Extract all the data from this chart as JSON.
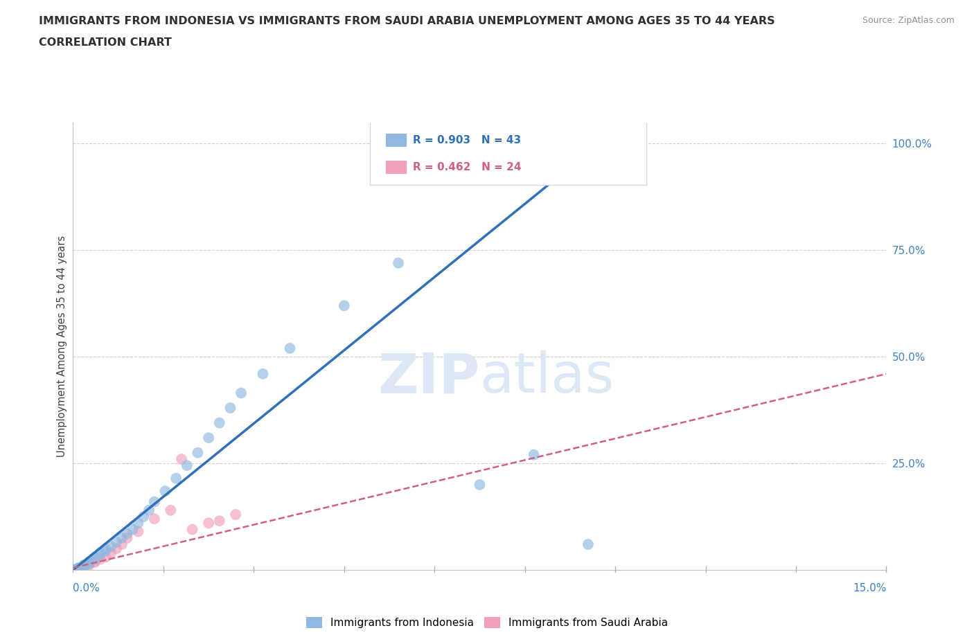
{
  "title_line1": "IMMIGRANTS FROM INDONESIA VS IMMIGRANTS FROM SAUDI ARABIA UNEMPLOYMENT AMONG AGES 35 TO 44 YEARS",
  "title_line2": "CORRELATION CHART",
  "source_text": "Source: ZipAtlas.com",
  "ylabel_label": "Unemployment Among Ages 35 to 44 years",
  "legend_entries": [
    {
      "label": "Immigrants from Indonesia",
      "R": "0.903",
      "N": "43",
      "color": "#a8c8e8"
    },
    {
      "label": "Immigrants from Saudi Arabia",
      "R": "0.462",
      "N": "24",
      "color": "#f0a8b8"
    }
  ],
  "indonesia_scatter_x": [
    0.0,
    0.0,
    0.001,
    0.001,
    0.001,
    0.001,
    0.002,
    0.002,
    0.002,
    0.002,
    0.003,
    0.003,
    0.003,
    0.004,
    0.004,
    0.005,
    0.005,
    0.006,
    0.006,
    0.007,
    0.008,
    0.009,
    0.01,
    0.011,
    0.012,
    0.013,
    0.014,
    0.015,
    0.017,
    0.019,
    0.021,
    0.023,
    0.025,
    0.027,
    0.029,
    0.031,
    0.035,
    0.04,
    0.05,
    0.06,
    0.075,
    0.085,
    0.095
  ],
  "indonesia_scatter_y": [
    0.0,
    0.001,
    0.002,
    0.003,
    0.004,
    0.005,
    0.006,
    0.008,
    0.01,
    0.012,
    0.015,
    0.018,
    0.02,
    0.025,
    0.03,
    0.035,
    0.04,
    0.045,
    0.05,
    0.055,
    0.065,
    0.075,
    0.085,
    0.095,
    0.11,
    0.125,
    0.14,
    0.16,
    0.185,
    0.215,
    0.245,
    0.275,
    0.31,
    0.345,
    0.38,
    0.415,
    0.46,
    0.52,
    0.62,
    0.72,
    0.2,
    0.27,
    0.06
  ],
  "saudi_scatter_x": [
    0.0,
    0.001,
    0.001,
    0.002,
    0.002,
    0.002,
    0.003,
    0.003,
    0.004,
    0.004,
    0.005,
    0.006,
    0.007,
    0.008,
    0.009,
    0.01,
    0.012,
    0.015,
    0.018,
    0.02,
    0.022,
    0.025,
    0.027,
    0.03
  ],
  "saudi_scatter_y": [
    0.0,
    0.002,
    0.004,
    0.006,
    0.008,
    0.01,
    0.012,
    0.015,
    0.018,
    0.02,
    0.025,
    0.03,
    0.04,
    0.05,
    0.06,
    0.075,
    0.09,
    0.12,
    0.14,
    0.26,
    0.095,
    0.11,
    0.115,
    0.13
  ],
  "indonesia_line_x": [
    0.0,
    0.098
  ],
  "indonesia_line_y": [
    0.0,
    1.01
  ],
  "saudi_line_x": [
    0.0,
    0.15
  ],
  "saudi_line_y": [
    0.005,
    0.46
  ],
  "indonesia_line_color": "#3070b8",
  "saudi_line_color": "#d06080",
  "scatter_blue": "#90b8e0",
  "scatter_pink": "#f0a0b8",
  "watermark_color": "#dce8f5",
  "title_color": "#303030",
  "source_color": "#909090",
  "axis_label_color": "#4080c0",
  "grid_color": "#d0d0d0",
  "background_color": "#ffffff",
  "xmin": 0.0,
  "xmax": 0.15,
  "ymin": 0.0,
  "ymax": 1.05
}
